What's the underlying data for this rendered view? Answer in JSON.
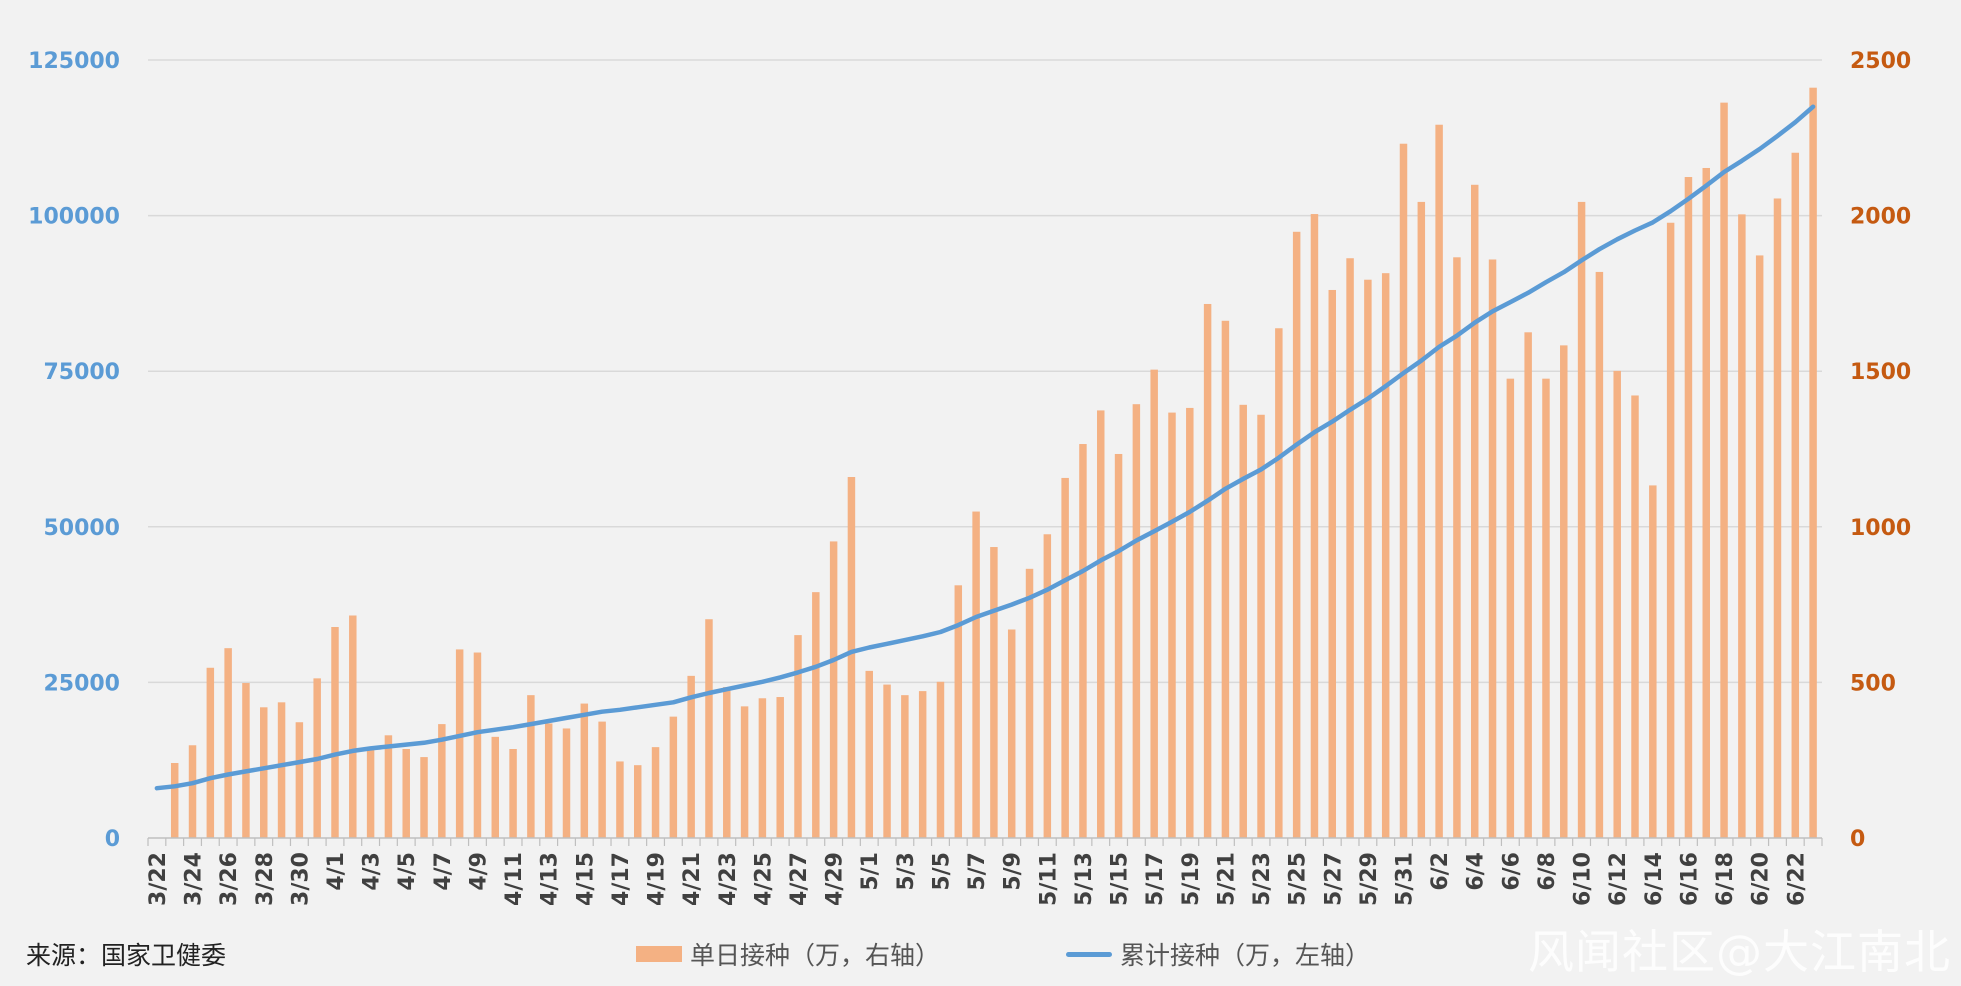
{
  "source_label": "来源：国家卫健委",
  "watermark": "风闻社区@大江南北",
  "colors": {
    "bar": "#f4b183",
    "line": "#5b9bd5",
    "left_axis": "#5b9bd5",
    "right_axis": "#c55a11",
    "grid": "#d9d9d9"
  },
  "chart_data": {
    "type": "bar+line",
    "categories": [
      "3/22",
      "3/23",
      "3/24",
      "3/25",
      "3/26",
      "3/27",
      "3/28",
      "3/29",
      "3/30",
      "3/31",
      "4/1",
      "4/2",
      "4/3",
      "4/4",
      "4/5",
      "4/6",
      "4/7",
      "4/8",
      "4/9",
      "4/10",
      "4/11",
      "4/12",
      "4/13",
      "4/14",
      "4/15",
      "4/16",
      "4/17",
      "4/18",
      "4/19",
      "4/20",
      "4/21",
      "4/22",
      "4/23",
      "4/24",
      "4/25",
      "4/26",
      "4/27",
      "4/28",
      "4/29",
      "4/30",
      "5/1",
      "5/2",
      "5/3",
      "5/4",
      "5/5",
      "5/6",
      "5/7",
      "5/8",
      "5/9",
      "5/10",
      "5/11",
      "5/12",
      "5/13",
      "5/14",
      "5/15",
      "5/16",
      "5/17",
      "5/18",
      "5/19",
      "5/20",
      "5/21",
      "5/22",
      "5/23",
      "5/24",
      "5/25",
      "5/26",
      "5/27",
      "5/28",
      "5/29",
      "5/30",
      "5/31",
      "6/1",
      "6/2",
      "6/3",
      "6/4",
      "6/5",
      "6/6",
      "6/7",
      "6/8",
      "6/9",
      "6/10",
      "6/11",
      "6/12",
      "6/13",
      "6/14",
      "6/15",
      "6/16",
      "6/17",
      "6/18",
      "6/19",
      "6/20",
      "6/21",
      "6/22",
      "6/23"
    ],
    "x_tick_labels": [
      "3/22",
      "3/24",
      "3/26",
      "3/28",
      "3/30",
      "4/1",
      "4/3",
      "4/5",
      "4/7",
      "4/9",
      "4/11",
      "4/13",
      "4/15",
      "4/17",
      "4/19",
      "4/21",
      "4/23",
      "4/25",
      "4/27",
      "4/29",
      "5/1",
      "5/3",
      "5/5",
      "5/7",
      "5/9",
      "5/11",
      "5/13",
      "5/15",
      "5/17",
      "5/19",
      "5/21",
      "5/23",
      "5/25",
      "5/27",
      "5/29",
      "5/31",
      "6/2",
      "6/4",
      "6/6",
      "6/8",
      "6/10",
      "6/12",
      "6/14",
      "6/16",
      "6/18",
      "6/20",
      "6/22"
    ],
    "series": [
      {
        "name": "单日接种（万，右轴）",
        "type": "bar",
        "axis": "right",
        "values": [
          0,
          241,
          298,
          547,
          610,
          498,
          420,
          436,
          372,
          513,
          678,
          715,
          288,
          330,
          286,
          260,
          366,
          606,
          596,
          325,
          286,
          459,
          368,
          352,
          432,
          374,
          246,
          234,
          292,
          390,
          521,
          703,
          485,
          423,
          449,
          453,
          652,
          790,
          953,
          1160,
          537,
          493,
          459,
          472,
          502,
          812,
          1049,
          935,
          670,
          865,
          976,
          1157,
          1266,
          1374,
          1234,
          1394,
          1505,
          1367,
          1382,
          1716,
          1662,
          1392,
          1360,
          1638,
          1948,
          2005,
          1761,
          1863,
          1794,
          1815,
          2231,
          2044,
          2292,
          1866,
          2099,
          1859,
          1476,
          1625,
          1476,
          1583,
          2044,
          1819,
          1501,
          1422,
          1133,
          1977,
          2124,
          2153,
          2363,
          2004,
          1872,
          2055,
          2202,
          2411
        ]
      },
      {
        "name": "累计接种（万，左轴）",
        "type": "line",
        "axis": "left",
        "values": [
          8000,
          8300,
          8800,
          9600,
          10200,
          10700,
          11200,
          11700,
          12200,
          12700,
          13400,
          14000,
          14400,
          14700,
          15000,
          15300,
          15800,
          16400,
          17000,
          17400,
          17800,
          18300,
          18800,
          19300,
          19800,
          20300,
          20600,
          21000,
          21400,
          21800,
          22600,
          23300,
          23900,
          24500,
          25100,
          25800,
          26600,
          27500,
          28600,
          29900,
          30600,
          31200,
          31800,
          32400,
          33100,
          34200,
          35500,
          36500,
          37500,
          38600,
          39900,
          41400,
          42900,
          44600,
          46100,
          47800,
          49300,
          50800,
          52400,
          54200,
          56100,
          57700,
          59200,
          61100,
          63200,
          65200,
          66900,
          68800,
          70600,
          72600,
          74700,
          76700,
          78900,
          80700,
          82800,
          84600,
          86100,
          87600,
          89300,
          90900,
          92800,
          94600,
          96200,
          97600,
          98900,
          100700,
          102700,
          104800,
          107000,
          108800,
          110700,
          112800,
          115000,
          117500
        ]
      }
    ],
    "y_left": {
      "range": [
        0,
        125000
      ],
      "ticks": [
        0,
        25000,
        50000,
        75000,
        100000,
        125000
      ]
    },
    "y_right": {
      "range": [
        0,
        2500
      ],
      "ticks": [
        0,
        500,
        1000,
        1500,
        2000,
        2500
      ]
    },
    "grid": true,
    "legend_position": "bottom-center"
  }
}
